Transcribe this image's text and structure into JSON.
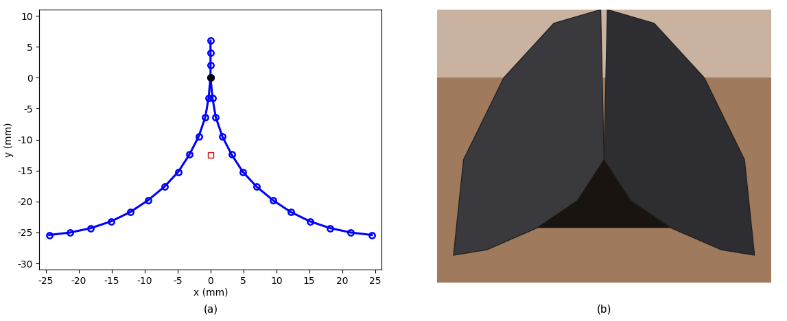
{
  "chart_data": {
    "type": "line",
    "caption": "(a)",
    "x_label": "x (mm)",
    "y_label": "y (mm)",
    "xlim": [
      -26,
      26
    ],
    "xticks": [
      -25,
      -20,
      -15,
      -10,
      -5,
      0,
      5,
      10,
      15,
      20,
      25
    ],
    "ylim": [
      -31,
      11
    ],
    "yticks": [
      -30,
      -25,
      -20,
      -15,
      -10,
      -5,
      0,
      5,
      10
    ],
    "grid": false,
    "series": [
      {
        "color": "#0000ff",
        "marker": "o",
        "line_style": "solid",
        "x": [
          -24.5,
          -21.3,
          -18.2,
          -15.1,
          -12.2,
          -9.5,
          -7.0,
          -4.9,
          -3.2,
          -1.8,
          -0.8,
          -0.3,
          0,
          0,
          0,
          0
        ],
        "values": [
          -25.4,
          -25.0,
          -24.3,
          -23.2,
          -21.7,
          -19.8,
          -17.6,
          -15.2,
          -12.4,
          -9.5,
          -6.4,
          -3.3,
          0,
          2,
          4,
          6
        ]
      },
      {
        "color": "#0000ff",
        "marker": "o",
        "line_style": "solid",
        "x": [
          0,
          0.3,
          0.8,
          1.8,
          3.2,
          4.9,
          7.0,
          9.5,
          12.2,
          15.1,
          18.2,
          21.3,
          24.5
        ],
        "values": [
          0,
          -3.3,
          -6.4,
          -9.5,
          -12.4,
          -15.2,
          -17.6,
          -19.8,
          -21.7,
          -23.2,
          -24.3,
          -25.0,
          -25.4
        ]
      },
      {
        "color": "#000000",
        "marker": "o",
        "line_style": "none",
        "x": [
          0
        ],
        "values": [
          0
        ]
      },
      {
        "color": "#cc0000",
        "marker": "s",
        "line_style": "none",
        "x": [
          0
        ],
        "values": [
          -12.5
        ]
      }
    ]
  },
  "photo": {
    "caption": "(b)"
  }
}
